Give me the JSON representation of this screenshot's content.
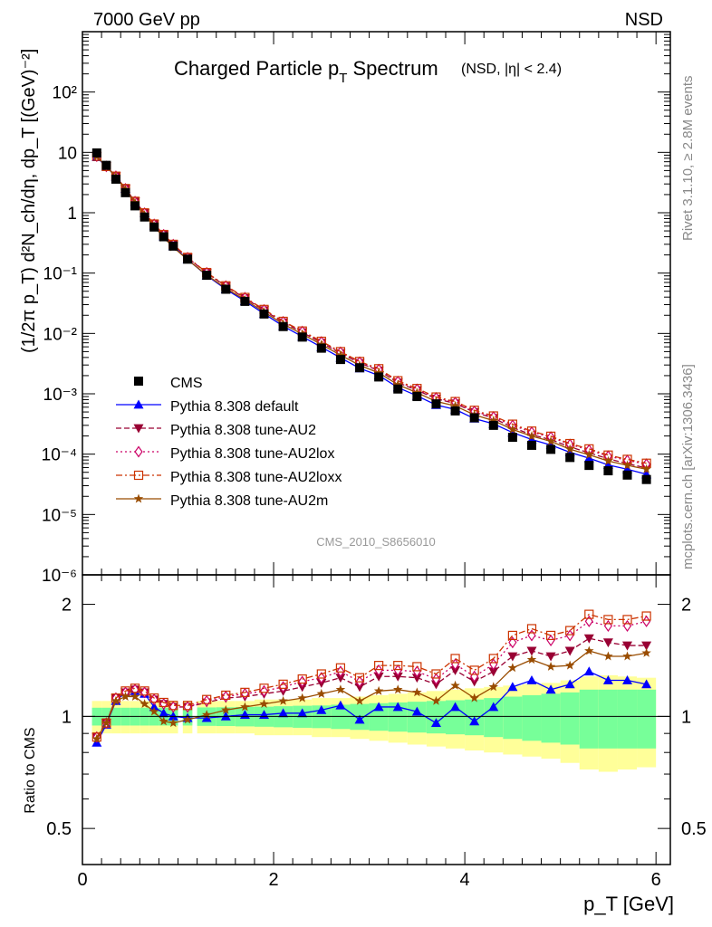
{
  "header": {
    "left": "7000 GeV pp",
    "right": "NSD"
  },
  "title": {
    "main": "Charged Particle p",
    "main_sub": "T",
    "main_after": " Spectrum",
    "qualifier": "(NSD, |η| < 2.4)"
  },
  "side_labels": {
    "rivet": "Rivet 3.1.10, ≥ 2.8M events",
    "mcplots": "mcplots.cern.ch [arXiv:1306.3436]"
  },
  "analysis_label": "CMS_2010_S8656010",
  "axis": {
    "ylabel_top": "(1/2π p_T) d²N_ch/dη, dp_T [(GeV)⁻²]",
    "ylabel_bottom": "Ratio to CMS",
    "xlabel": "p_T [GeV]"
  },
  "chart_data": {
    "type": "scatter",
    "x": [
      0.15,
      0.25,
      0.35,
      0.45,
      0.55,
      0.65,
      0.75,
      0.85,
      0.95,
      1.1,
      1.3,
      1.5,
      1.7,
      1.9,
      2.1,
      2.3,
      2.5,
      2.7,
      2.9,
      3.1,
      3.3,
      3.5,
      3.7,
      3.9,
      4.1,
      4.3,
      4.5,
      4.7,
      4.9,
      5.1,
      5.3,
      5.5,
      5.7,
      5.9
    ],
    "xlim": [
      0,
      6.15
    ],
    "top_ylim": [
      1e-06,
      1000
    ],
    "top_yscale": "log",
    "top_yticks": [
      "10⁻⁶",
      "10⁻⁵",
      "10⁻⁴",
      "10⁻³",
      "10⁻²",
      "10⁻¹",
      "1",
      "10",
      "10²"
    ],
    "bottom_ylim": [
      0.4,
      2.4
    ],
    "bottom_yscale": "log",
    "bottom_yticks": [
      "0.5",
      "1",
      "2"
    ],
    "xticks": [
      "0",
      "2",
      "4",
      "6"
    ],
    "data": {
      "name": "CMS",
      "values": [
        9.8,
        6.1,
        3.6,
        2.15,
        1.3,
        0.85,
        0.58,
        0.4,
        0.28,
        0.17,
        0.092,
        0.054,
        0.034,
        0.021,
        0.013,
        0.0087,
        0.0057,
        0.0037,
        0.0027,
        0.0019,
        0.0012,
        0.0009,
        0.00068,
        0.00052,
        0.0004,
        0.0003,
        0.00019,
        0.00014,
        0.00012,
        8.8e-05,
        6.5e-05,
        5.3e-05,
        4.5e-05,
        3.8e-05
      ],
      "band_inner": [
        0.055,
        0.055,
        0.055,
        0.055,
        0.055,
        0.055,
        0.055,
        0.055,
        0.055,
        0.055,
        0.057,
        0.058,
        0.06,
        0.062,
        0.065,
        0.068,
        0.07,
        0.075,
        0.08,
        0.085,
        0.09,
        0.095,
        0.1,
        0.105,
        0.11,
        0.12,
        0.13,
        0.14,
        0.15,
        0.16,
        0.18,
        0.18,
        0.18,
        0.18
      ],
      "band_outer": [
        0.1,
        0.1,
        0.1,
        0.1,
        0.1,
        0.1,
        0.1,
        0.1,
        0.1,
        0.1,
        0.1,
        0.1,
        0.1,
        0.11,
        0.11,
        0.11,
        0.12,
        0.12,
        0.13,
        0.14,
        0.15,
        0.16,
        0.17,
        0.18,
        0.19,
        0.2,
        0.21,
        0.22,
        0.23,
        0.25,
        0.28,
        0.29,
        0.28,
        0.27
      ],
      "color": "#000000"
    },
    "series": [
      {
        "name": "Pythia 8.308 default",
        "color": "#0000ff",
        "marker": "triangle-up",
        "line": "solid",
        "ratio": [
          0.85,
          0.95,
          1.1,
          1.16,
          1.17,
          1.15,
          1.06,
          1.02,
          1.0,
          0.99,
          0.99,
          1.0,
          1.01,
          1.01,
          1.02,
          1.02,
          1.04,
          1.07,
          0.98,
          1.06,
          1.06,
          1.03,
          0.96,
          1.06,
          0.97,
          1.06,
          1.2,
          1.25,
          1.18,
          1.22,
          1.32,
          1.25,
          1.25,
          1.22
        ]
      },
      {
        "name": "Pythia 8.308 tune-AU2",
        "color": "#990033",
        "marker": "triangle-down",
        "line": "dashed",
        "ratio": [
          0.88,
          0.96,
          1.12,
          1.16,
          1.18,
          1.16,
          1.11,
          1.08,
          1.06,
          1.06,
          1.09,
          1.12,
          1.13,
          1.15,
          1.17,
          1.2,
          1.23,
          1.27,
          1.2,
          1.28,
          1.28,
          1.27,
          1.22,
          1.33,
          1.24,
          1.32,
          1.45,
          1.5,
          1.45,
          1.5,
          1.62,
          1.58,
          1.55,
          1.55
        ]
      },
      {
        "name": "Pythia 8.308 tune-AU2lox",
        "color": "#cc0066",
        "marker": "diamond-open",
        "line": "dotted",
        "ratio": [
          0.88,
          0.96,
          1.12,
          1.16,
          1.18,
          1.16,
          1.11,
          1.08,
          1.06,
          1.06,
          1.1,
          1.13,
          1.15,
          1.17,
          1.2,
          1.24,
          1.27,
          1.32,
          1.24,
          1.33,
          1.33,
          1.32,
          1.26,
          1.38,
          1.28,
          1.38,
          1.58,
          1.65,
          1.6,
          1.65,
          1.8,
          1.75,
          1.75,
          1.8
        ]
      },
      {
        "name": "Pythia 8.308 tune-AU2loxx",
        "color": "#cc3300",
        "marker": "square-open",
        "line": "dashdot",
        "ratio": [
          0.88,
          0.96,
          1.12,
          1.17,
          1.19,
          1.17,
          1.12,
          1.09,
          1.07,
          1.07,
          1.11,
          1.14,
          1.16,
          1.19,
          1.22,
          1.26,
          1.3,
          1.35,
          1.27,
          1.37,
          1.37,
          1.36,
          1.3,
          1.43,
          1.33,
          1.43,
          1.65,
          1.72,
          1.65,
          1.7,
          1.88,
          1.82,
          1.82,
          1.86
        ]
      },
      {
        "name": "Pythia 8.308 tune-AU2m",
        "color": "#994c00",
        "marker": "star",
        "line": "solid",
        "ratio": [
          0.87,
          0.96,
          1.1,
          1.13,
          1.13,
          1.08,
          1.03,
          0.97,
          0.96,
          0.98,
          1.01,
          1.04,
          1.06,
          1.08,
          1.1,
          1.12,
          1.15,
          1.18,
          1.1,
          1.17,
          1.18,
          1.16,
          1.1,
          1.21,
          1.12,
          1.2,
          1.35,
          1.42,
          1.36,
          1.37,
          1.5,
          1.45,
          1.45,
          1.48
        ]
      }
    ],
    "band_colors": {
      "inner": "#77ff99",
      "outer": "#ffff99"
    },
    "legend_placement": "lower-left of top panel",
    "reference_line": 1
  }
}
